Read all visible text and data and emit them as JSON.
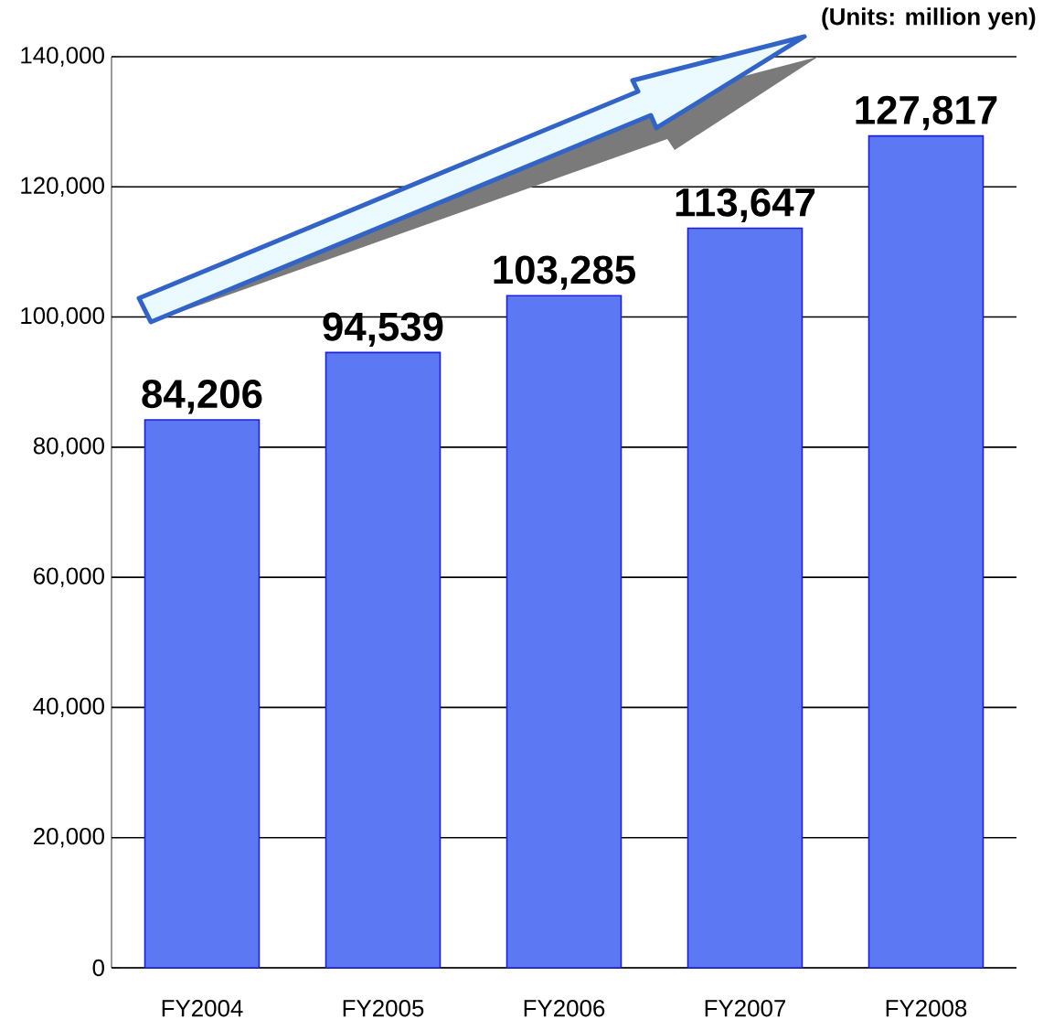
{
  "chart_data": {
    "type": "bar",
    "categories": [
      "FY2004",
      "FY2005",
      "FY2006",
      "FY2007",
      "FY2008"
    ],
    "values": [
      84206,
      94539,
      103285,
      113647,
      127817
    ],
    "value_labels": [
      "84,206",
      "94,539",
      "103,285",
      "113,647",
      "127,817"
    ],
    "color": "#5c78f2",
    "ylim": [
      0,
      140000
    ],
    "yticks": [
      {
        "value": 0,
        "label": "0"
      },
      {
        "value": 20000,
        "label": "20,000"
      },
      {
        "value": 40000,
        "label": "40,000"
      },
      {
        "value": 60000,
        "label": "60,000"
      },
      {
        "value": 80000,
        "label": "80,000"
      },
      {
        "value": 100000,
        "label": "100,000"
      },
      {
        "value": 120000,
        "label": "120,000"
      },
      {
        "value": 140000,
        "label": "140,000"
      }
    ],
    "grid": "y",
    "annotations": [
      "(Units: million yen)"
    ]
  }
}
